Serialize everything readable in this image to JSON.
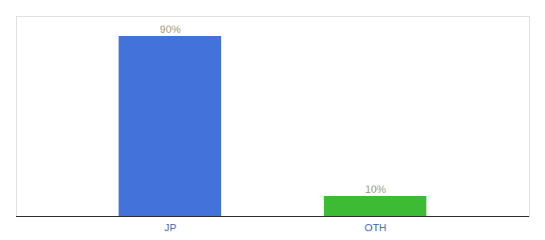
{
  "chart_data": {
    "type": "bar",
    "categories": [
      "JP",
      "OTH"
    ],
    "values": [
      90,
      10
    ],
    "value_labels": [
      "90%",
      "10%"
    ],
    "colors": [
      "#4472db",
      "#3dbb35"
    ],
    "ylim": [
      0,
      100
    ],
    "grid": false,
    "data_labels": true,
    "tick_labels": "x"
  }
}
